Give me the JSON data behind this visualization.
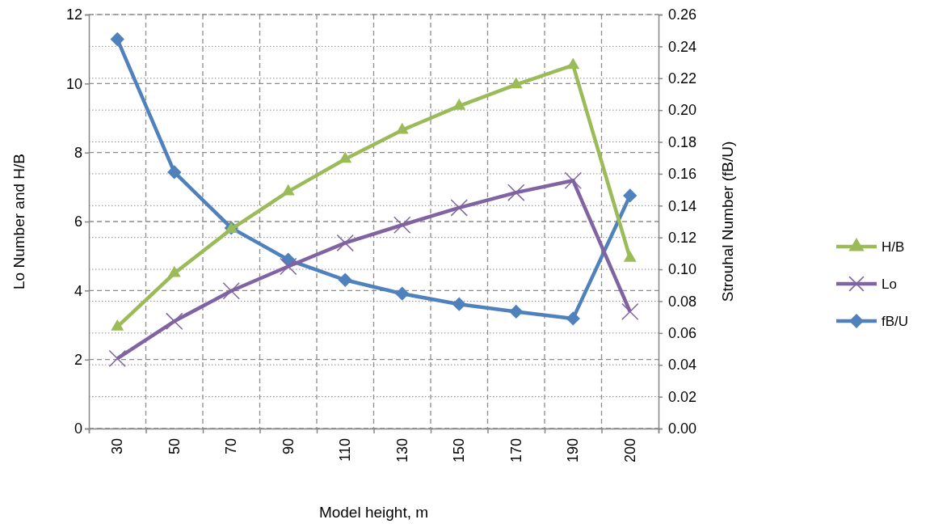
{
  "chart_data": {
    "type": "line",
    "xlabel": "Model height, m",
    "ylabel": "Lo Number and H/B",
    "y2label": "Strouhal Number (fB/U)",
    "categories": [
      "30",
      "50",
      "70",
      "90",
      "110",
      "130",
      "150",
      "170",
      "190",
      "200"
    ],
    "ylim": [
      0,
      12
    ],
    "yticks": [
      0,
      2,
      4,
      6,
      8,
      10,
      12
    ],
    "y2lim": [
      0,
      0.26
    ],
    "y2ticks": [
      {
        "value": 0,
        "label": "0.00"
      },
      {
        "value": 0.02,
        "label": "0.02"
      },
      {
        "value": 0.04,
        "label": "0.04"
      },
      {
        "value": 0.06,
        "label": "0.06"
      },
      {
        "value": 0.08,
        "label": "0.08"
      },
      {
        "value": 0.1,
        "label": "0.10"
      },
      {
        "value": 0.12,
        "label": "0.12"
      },
      {
        "value": 0.14,
        "label": "0.14"
      },
      {
        "value": 0.16,
        "label": "0.16"
      },
      {
        "value": 0.18,
        "label": "0.18"
      },
      {
        "value": 0.2,
        "label": "0.20"
      },
      {
        "value": 0.22,
        "label": "0.22"
      },
      {
        "value": 0.24,
        "label": "0.24"
      },
      {
        "value": 0.26,
        "label": "0.26"
      }
    ],
    "grid": true,
    "legend": "right",
    "line_style": "solid",
    "series": [
      {
        "name": "H/B",
        "color": "#9bbb59",
        "marker": "triangle",
        "values": [
          2.95,
          4.5,
          5.78,
          6.87,
          7.81,
          8.65,
          9.35,
          9.97,
          10.53,
          4.94
        ]
      },
      {
        "name": "Lo",
        "color": "#8064a2",
        "marker": "cross",
        "values": [
          2.03,
          3.11,
          3.99,
          4.7,
          5.38,
          5.9,
          6.4,
          6.84,
          7.19,
          3.39
        ]
      },
      {
        "name": "fB/U",
        "color": "#4f81bd",
        "marker": "diamond",
        "axis": "y2",
        "values": [
          0.2445,
          0.161,
          0.126,
          0.106,
          0.0933,
          0.0847,
          0.0781,
          0.0734,
          0.0691,
          0.1463
        ]
      }
    ]
  }
}
